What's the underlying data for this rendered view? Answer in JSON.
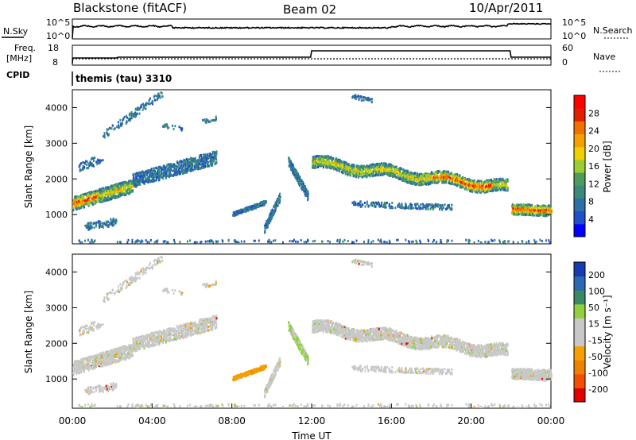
{
  "header": {
    "radar": "Blackstone (fitACF)",
    "beam": "Beam 02",
    "date": "10/Apr/2011"
  },
  "strip1": {
    "label": "N.Sky",
    "left_top": "10^5",
    "left_bottom": "10^0",
    "right_top": "10^5",
    "right_bottom": "10^0",
    "right_label": "N.Search"
  },
  "strip2": {
    "label_top": "Freq.",
    "label_bottom": "[MHz]",
    "left_top": "18",
    "left_bottom": "8",
    "right_top": "60",
    "right_bottom": "0",
    "right_label": "Nave"
  },
  "strip3": {
    "label": "CPID",
    "mode": "themis (tau) 3310"
  },
  "colors": {
    "power": [
      "#0000ff",
      "#1e50c8",
      "#2d6fa8",
      "#3a8a78",
      "#4f9b5f",
      "#9acd32",
      "#f0d000",
      "#f5a000",
      "#f07000",
      "#e02000",
      "#ff0000"
    ],
    "velocity": [
      "#e00000",
      "#f05000",
      "#f08000",
      "#f5a000",
      "#c8c8c8",
      "#c8c8c8",
      "#90d040",
      "#3a8a6a",
      "#2a6ab0",
      "#1a3ab0"
    ]
  },
  "chart_data": [
    {
      "type": "heatmap",
      "name": "power",
      "ylabel": "Slant Range [km]",
      "ylim": [
        180,
        4500
      ],
      "yticks": [
        "1000",
        "2000",
        "3000",
        "4000"
      ],
      "xlim": [
        0,
        24
      ],
      "colorbar_label": "Power [dB]",
      "colorbar_ticks": [
        "4",
        "8",
        "12",
        "16",
        "20",
        "24",
        "28"
      ],
      "colorbar_range": [
        0,
        32
      ]
    },
    {
      "type": "heatmap",
      "name": "velocity",
      "xlabel": "Time UT",
      "xticks": [
        "00:00",
        "04:00",
        "08:00",
        "12:00",
        "16:00",
        "20:00",
        "00:00"
      ],
      "ylabel": "Slant Range [km]",
      "ylim": [
        180,
        4500
      ],
      "yticks": [
        "1000",
        "2000",
        "3000",
        "4000"
      ],
      "xlim": [
        0,
        24
      ],
      "colorbar_label": "Velocity [m s⁻¹]",
      "colorbar_ticks": [
        "200",
        "100",
        "50",
        "15",
        "-15",
        "-50",
        "-100",
        "-200"
      ]
    }
  ]
}
